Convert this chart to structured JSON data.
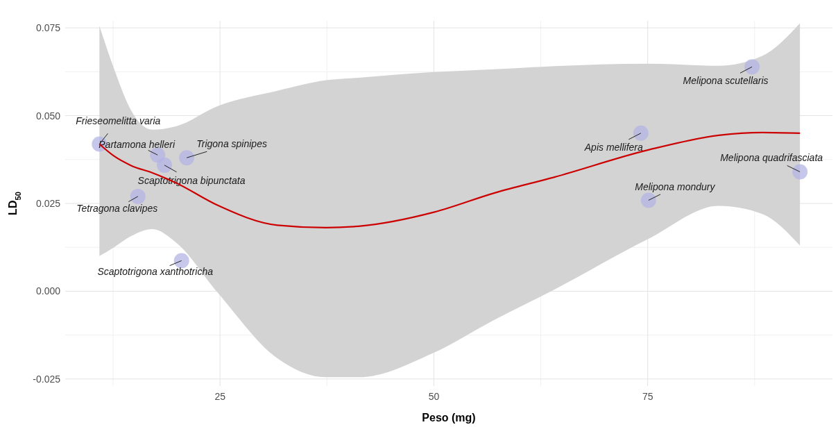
{
  "chart_data": {
    "type": "scatter",
    "xlabel": "Peso (mg)",
    "ylabel": "LD$_{50}$",
    "xlim": [
      6.9,
      96.6
    ],
    "ylim": [
      -0.027,
      0.077
    ],
    "xticks": [
      25,
      50,
      75
    ],
    "yticks": [
      {
        "value": -0.025,
        "label": "-0.025"
      },
      {
        "value": 0,
        "label": "0.000"
      },
      {
        "value": 0.025,
        "label": "0.025"
      },
      {
        "value": 0.05,
        "label": "0.050"
      },
      {
        "value": 0.075,
        "label": "0.075"
      }
    ],
    "grid": true,
    "legend": false,
    "marker": "circle",
    "series": [
      {
        "type": "line",
        "color": "#cc0000",
        "line_style": "solid",
        "marker": "none",
        "x": [
          10.9,
          12.6,
          14.6,
          17.1,
          19.9,
          24.7,
          31.7,
          37.4,
          41.2,
          50,
          57.1,
          64.1,
          75,
          83.3,
          88.4,
          92.8
        ],
        "values": [
          0.0419,
          0.0385,
          0.0358,
          0.0337,
          0.0308,
          0.0245,
          0.0188,
          0.0181,
          0.0185,
          0.0225,
          0.028,
          0.0325,
          0.0402,
          0.0444,
          0.0452,
          0.045
        ],
        "lower": [
          0.01,
          0.0125,
          0.0157,
          0.0177,
          0.0138,
          -0.0003,
          -0.0191,
          -0.0245,
          -0.0245,
          -0.0175,
          -0.0081,
          0.0005,
          0.0148,
          0.0243,
          0.022,
          0.013
        ],
        "upper": [
          0.0755,
          0.0634,
          0.0515,
          0.046,
          0.047,
          0.0527,
          0.0571,
          0.0601,
          0.0608,
          0.0624,
          0.0632,
          0.0641,
          0.0648,
          0.0642,
          0.067,
          0.0763
        ]
      },
      {
        "type": "scatter",
        "color": "#b4b4e6",
        "x": [
          10.9,
          17.7,
          21.1,
          18.5,
          15.4,
          20.5,
          74.2,
          75.1,
          92.8,
          87.2
        ],
        "values": [
          0.0419,
          0.0388,
          0.038,
          0.0359,
          0.027,
          0.0087,
          0.045,
          0.0259,
          0.034,
          0.0639
        ]
      }
    ],
    "annotations": [
      {
        "text": "Frieseomelitta varia",
        "x": 10.9,
        "y": 0.0419
      },
      {
        "text": "Partamona helleri",
        "x": 17.7,
        "y": 0.0388
      },
      {
        "text": "Trigona spinipes",
        "x": 21.1,
        "y": 0.038
      },
      {
        "text": "Scaptotrigona bipunctata",
        "x": 18.5,
        "y": 0.0359
      },
      {
        "text": "Tetragona clavipes",
        "x": 15.4,
        "y": 0.027
      },
      {
        "text": "Scaptotrigona xanthotricha",
        "x": 20.5,
        "y": 0.0087
      },
      {
        "text": "Apis mellifera",
        "x": 74.2,
        "y": 0.045
      },
      {
        "text": "Melipona mondury",
        "x": 75.1,
        "y": 0.0259
      },
      {
        "text": "Melipona quadrifasciata",
        "x": 92.8,
        "y": 0.034
      },
      {
        "text": "Melipona scutellaris",
        "x": 87.2,
        "y": 0.0639
      }
    ]
  }
}
